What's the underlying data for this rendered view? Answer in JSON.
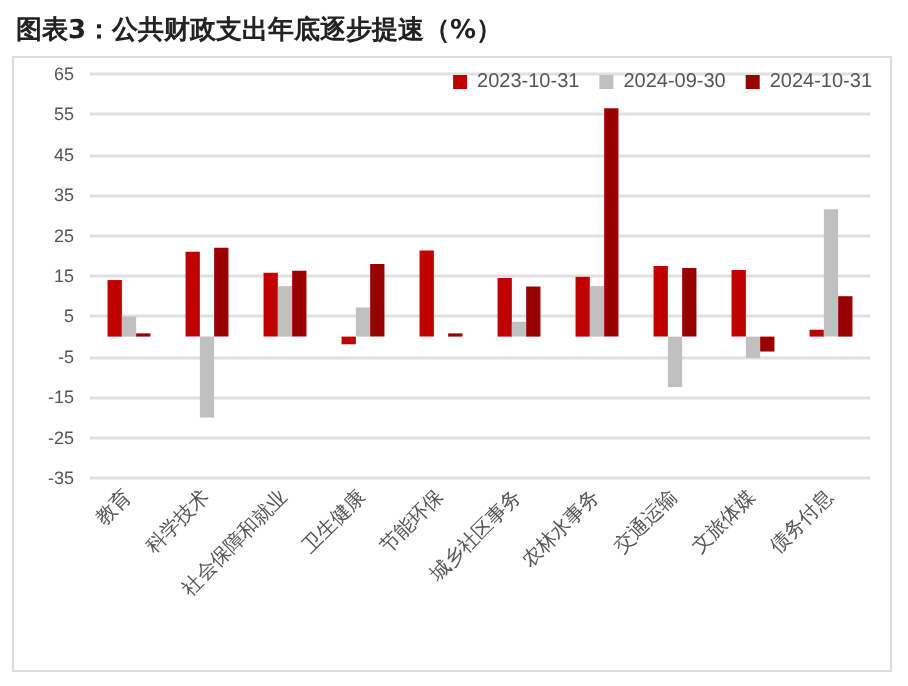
{
  "chart_data": {
    "type": "bar",
    "title": "图表3：公共财政支出年底逐步提速（%）",
    "categories": [
      "教育",
      "科学技术",
      "社会保障和就业",
      "卫生健康",
      "节能环保",
      "城乡社区事务",
      "农林水事务",
      "交通运输",
      "文旅体媒",
      "债务付息"
    ],
    "series": [
      {
        "name": "2023-10-31",
        "color": "#c00000",
        "values": [
          14,
          21,
          15.8,
          -1.9,
          21.3,
          14.5,
          14.8,
          17.5,
          16.5,
          1.7
        ]
      },
      {
        "name": "2024-09-30",
        "color": "#c0c0c0",
        "values": [
          5,
          -20,
          12.5,
          7.2,
          null,
          3.7,
          12.5,
          -12.5,
          -5.3,
          31.5
        ]
      },
      {
        "name": "2024-10-31",
        "color": "#990000",
        "values": [
          0.8,
          22,
          16.3,
          18,
          0.8,
          12.4,
          56.5,
          17,
          -3.7,
          10
        ]
      }
    ],
    "ylim": [
      -35,
      65
    ],
    "yticks": [
      -35,
      -25,
      -15,
      -5,
      5,
      15,
      25,
      35,
      45,
      55,
      65
    ],
    "grid": "y",
    "legend": "top right"
  }
}
